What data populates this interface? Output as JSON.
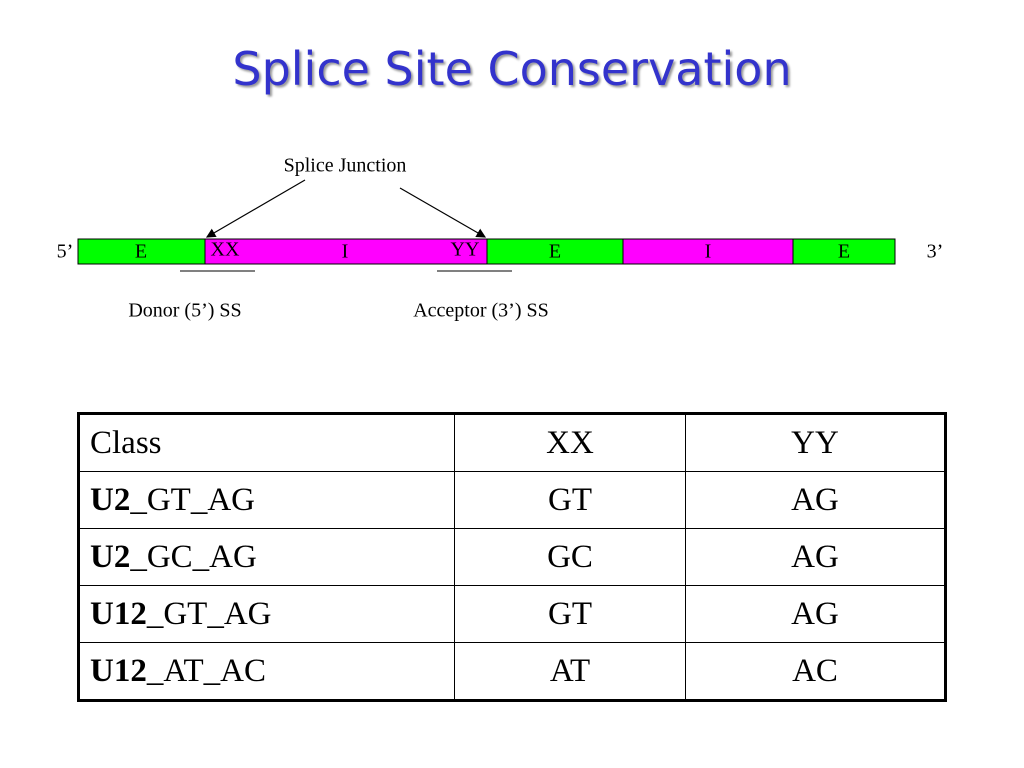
{
  "title": "Splice Site Conservation",
  "diagram": {
    "junction_label": "Splice Junction",
    "five_prime": "5’",
    "three_prime": "3’",
    "segments": [
      "E",
      "XX",
      "I",
      "YY",
      "E",
      "I",
      "E"
    ],
    "donor_label": "Donor (5’) SS",
    "acceptor_label": "Acceptor (3’) SS"
  },
  "table": {
    "header": [
      "Class",
      "XX",
      "YY"
    ],
    "rows": [
      [
        {
          "bold": "U2",
          "rest": "_GT_AG"
        },
        "GT",
        "AG"
      ],
      [
        {
          "bold": "U2",
          "rest": "_GC_AG"
        },
        "GC",
        "AG"
      ],
      [
        {
          "bold": "U12",
          "rest": "_GT_AG"
        },
        "GT",
        "AG"
      ],
      [
        {
          "bold": "U12",
          "rest": "_AT_AC"
        },
        "AT",
        "AC"
      ]
    ]
  }
}
